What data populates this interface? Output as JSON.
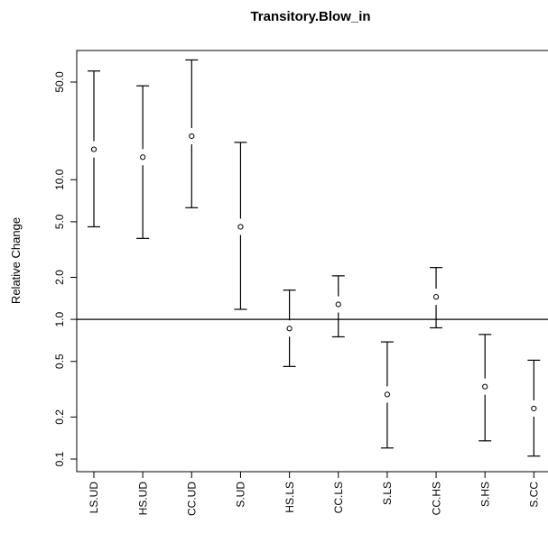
{
  "chart_data": {
    "type": "errorbar",
    "title": "Transitory.Blow_in",
    "xlabel": "",
    "ylabel": "Relative Change",
    "yscale": "log",
    "ylim": [
      0.08,
      80
    ],
    "reference_line": 1.0,
    "grid": false,
    "yticks": [
      {
        "value": 0.1,
        "label": "0.1"
      },
      {
        "value": 0.2,
        "label": "0.2"
      },
      {
        "value": 0.5,
        "label": "0.5"
      },
      {
        "value": 1.0,
        "label": "1.0"
      },
      {
        "value": 2.0,
        "label": "2.0"
      },
      {
        "value": 5.0,
        "label": "5.0"
      },
      {
        "value": 10.0,
        "label": "10.0"
      },
      {
        "value": 50.0,
        "label": "50.0"
      }
    ],
    "categories": [
      "LS.UD",
      "HS.UD",
      "CC.UD",
      "S.UD",
      "HS.LS",
      "CC.LS",
      "S.LS",
      "CC.HS",
      "S.HS",
      "S.CC"
    ],
    "estimates": [
      16.5,
      14.5,
      20.5,
      4.6,
      0.86,
      1.28,
      0.29,
      1.45,
      0.33,
      0.23
    ],
    "lower": [
      4.6,
      3.8,
      6.3,
      1.18,
      0.46,
      0.75,
      0.12,
      0.87,
      0.135,
      0.105
    ],
    "upper": [
      60.0,
      47.0,
      72.0,
      18.5,
      1.62,
      2.05,
      0.69,
      2.35,
      0.78,
      0.51
    ]
  }
}
